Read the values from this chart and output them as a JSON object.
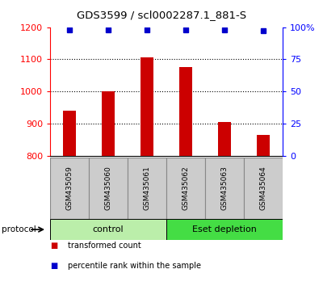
{
  "title": "GDS3599 / scl0002287.1_881-S",
  "samples": [
    "GSM435059",
    "GSM435060",
    "GSM435061",
    "GSM435062",
    "GSM435063",
    "GSM435064"
  ],
  "transformed_counts": [
    940,
    1000,
    1105,
    1075,
    905,
    865
  ],
  "percentile_ranks": [
    98,
    98,
    98,
    98,
    98,
    97
  ],
  "ylim_left": [
    800,
    1200
  ],
  "ylim_right": [
    0,
    100
  ],
  "yticks_left": [
    800,
    900,
    1000,
    1100,
    1200
  ],
  "yticks_right": [
    0,
    25,
    50,
    75,
    100
  ],
  "ytick_labels_right": [
    "0",
    "25",
    "50",
    "75",
    "100%"
  ],
  "groups": [
    {
      "label": "control",
      "samples_idx": [
        0,
        1,
        2
      ],
      "color": "#bbeeaa"
    },
    {
      "label": "Eset depletion",
      "samples_idx": [
        3,
        4,
        5
      ],
      "color": "#44dd44"
    }
  ],
  "bar_color": "#cc0000",
  "dot_color": "#0000cc",
  "protocol_label": "protocol",
  "legend_items": [
    {
      "color": "#cc0000",
      "marker": "s",
      "label": "transformed count"
    },
    {
      "color": "#0000cc",
      "marker": "s",
      "label": "percentile rank within the sample"
    }
  ],
  "bar_bottom": 800,
  "bg_color": "#ffffff",
  "sample_box_color": "#cccccc",
  "sample_box_border": "#888888"
}
